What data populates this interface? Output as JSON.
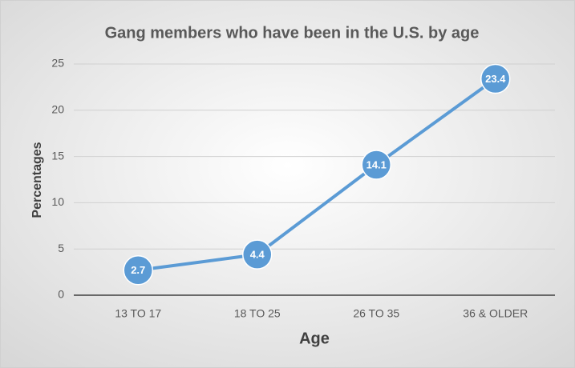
{
  "chart_data": {
    "type": "line",
    "title": "Gang members who have been in the U.S. by age",
    "x_label": "Age",
    "y_label": "Percentages",
    "categories": [
      "13 TO 17",
      "18 TO 25",
      "26 TO 35",
      "36 & OLDER"
    ],
    "values": [
      2.7,
      4.4,
      14.1,
      23.4
    ],
    "color": "#5b9bd5",
    "ylim": [
      0,
      25
    ],
    "yticks": [
      0,
      5,
      10,
      15,
      20,
      25
    ],
    "grid": true,
    "data_labels": true
  }
}
